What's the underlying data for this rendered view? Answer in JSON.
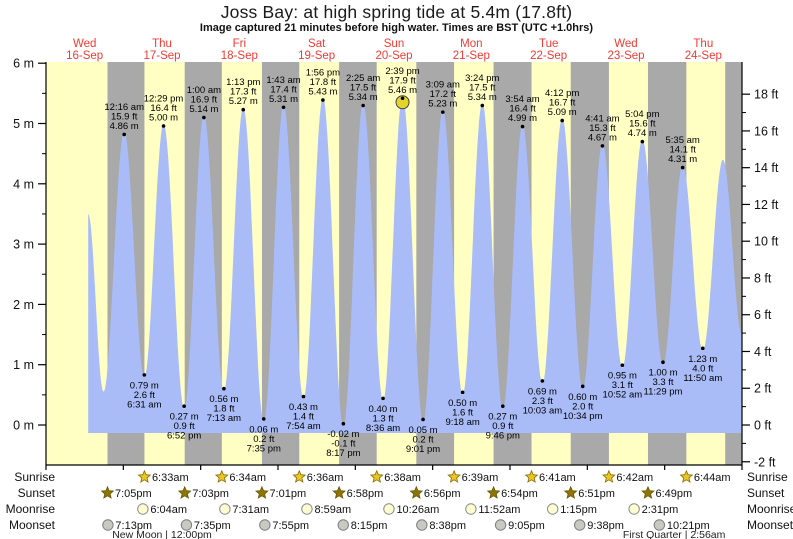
{
  "title": "Joss Bay: at high  spring tide at 5.4m (17.8ft)",
  "subtitle": "Image captured 21 minutes before high water. Times are BST (UTC +1.0hrs)",
  "row_labels": {
    "sunrise": "Sunrise",
    "sunset": "Sunset",
    "moonrise": "Moonrise",
    "moonset": "Moonset"
  },
  "colors": {
    "day_band": "#ffffc4",
    "night_band": "#a9a9a9",
    "tide_fill": "#a9bcf7",
    "date_label": "#f13b33",
    "marker_fill": "#e3d42c",
    "sunrise_star": "#e9c624",
    "sunset_star": "#8e7606",
    "moonrise_fill": "#ffffd2",
    "moonset_fill": "#c9c9c1"
  },
  "chart_data": {
    "type": "area",
    "title": "Joss Bay tide heights, 16-24 Sep",
    "ylabel_left": "m",
    "ylabel_right": "ft",
    "y_ticks_left": [
      "0 m",
      "1 m",
      "2 m",
      "3 m",
      "4 m",
      "5 m",
      "6 m"
    ],
    "y_ticks_right": [
      "-2 ft",
      "0 ft",
      "2 ft",
      "4 ft",
      "6 ft",
      "8 ft",
      "10 ft",
      "12 ft",
      "14 ft",
      "16 ft",
      "18 ft"
    ],
    "ylim_m": [
      -0.65,
      6
    ],
    "days": [
      {
        "dow": "Wed",
        "date": "16-Sep"
      },
      {
        "dow": "Thu",
        "date": "17-Sep"
      },
      {
        "dow": "Fri",
        "date": "18-Sep"
      },
      {
        "dow": "Sat",
        "date": "19-Sep"
      },
      {
        "dow": "Sun",
        "date": "20-Sep"
      },
      {
        "dow": "Mon",
        "date": "21-Sep"
      },
      {
        "dow": "Tue",
        "date": "22-Sep"
      },
      {
        "dow": "Wed",
        "date": "23-Sep"
      },
      {
        "dow": "Thu",
        "date": "24-Sep"
      }
    ],
    "tides": [
      {
        "day": 0,
        "time": "1:05 pm",
        "height_m": 3.5,
        "kind": "edge"
      },
      {
        "day": 0,
        "time": "5:50 pm",
        "height_m": 0.55,
        "kind": "low",
        "unlabeled": true
      },
      {
        "day": 1,
        "time": "12:16 am",
        "height_m": 4.86,
        "ft_label": "15.9 ft",
        "m_label": "4.86 m",
        "kind": "high"
      },
      {
        "day": 1,
        "time": "6:31 am",
        "height_m": 0.79,
        "ft_label": "2.6 ft",
        "m_label": "0.79 m",
        "kind": "low"
      },
      {
        "day": 1,
        "time": "12:29 pm",
        "height_m": 5.0,
        "ft_label": "16.4 ft",
        "m_label": "5.00 m",
        "kind": "high"
      },
      {
        "day": 1,
        "time": "6:52 pm",
        "height_m": 0.27,
        "ft_label": "0.9 ft",
        "m_label": "0.27 m",
        "kind": "low"
      },
      {
        "day": 2,
        "time": "1:00 am",
        "height_m": 5.14,
        "ft_label": "16.9 ft",
        "m_label": "5.14 m",
        "kind": "high"
      },
      {
        "day": 2,
        "time": "7:13 am",
        "height_m": 0.56,
        "ft_label": "1.8 ft",
        "m_label": "0.56 m",
        "kind": "low"
      },
      {
        "day": 2,
        "time": "1:13 pm",
        "height_m": 5.27,
        "ft_label": "17.3 ft",
        "m_label": "5.27 m",
        "kind": "high"
      },
      {
        "day": 2,
        "time": "7:35 pm",
        "height_m": 0.06,
        "ft_label": "0.2 ft",
        "m_label": "0.06 m",
        "kind": "low"
      },
      {
        "day": 3,
        "time": "1:43 am",
        "height_m": 5.31,
        "ft_label": "17.4 ft",
        "m_label": "5.31 m",
        "kind": "high"
      },
      {
        "day": 3,
        "time": "7:54 am",
        "height_m": 0.43,
        "ft_label": "1.4 ft",
        "m_label": "0.43 m",
        "kind": "low"
      },
      {
        "day": 3,
        "time": "1:56 pm",
        "height_m": 5.43,
        "ft_label": "17.8 ft",
        "m_label": "5.43 m",
        "kind": "high"
      },
      {
        "day": 3,
        "time": "8:17 pm",
        "height_m": -0.02,
        "ft_label": "-0.1 ft",
        "m_label": "-0.02 m",
        "kind": "low"
      },
      {
        "day": 4,
        "time": "2:25 am",
        "height_m": 5.34,
        "ft_label": "17.5 ft",
        "m_label": "5.34 m",
        "kind": "high"
      },
      {
        "day": 4,
        "time": "8:36 am",
        "height_m": 0.4,
        "ft_label": "1.3 ft",
        "m_label": "0.40 m",
        "kind": "low"
      },
      {
        "day": 4,
        "time": "2:39 pm",
        "height_m": 5.46,
        "ft_label": "17.9 ft",
        "m_label": "5.46 m",
        "kind": "high",
        "marker": true
      },
      {
        "day": 4,
        "time": "9:01 pm",
        "height_m": 0.05,
        "ft_label": "0.2 ft",
        "m_label": "0.05 m",
        "kind": "low"
      },
      {
        "day": 5,
        "time": "3:09 am",
        "height_m": 5.23,
        "ft_label": "17.2 ft",
        "m_label": "5.23 m",
        "kind": "high"
      },
      {
        "day": 5,
        "time": "9:18 am",
        "height_m": 0.5,
        "ft_label": "1.6 ft",
        "m_label": "0.50 m",
        "kind": "low"
      },
      {
        "day": 5,
        "time": "3:24 pm",
        "height_m": 5.34,
        "ft_label": "17.5 ft",
        "m_label": "5.34 m",
        "kind": "high"
      },
      {
        "day": 5,
        "time": "9:46 pm",
        "height_m": 0.27,
        "ft_label": "0.9 ft",
        "m_label": "0.27 m",
        "kind": "low"
      },
      {
        "day": 6,
        "time": "3:54 am",
        "height_m": 4.99,
        "ft_label": "16.4 ft",
        "m_label": "4.99 m",
        "kind": "high"
      },
      {
        "day": 6,
        "time": "10:03 am",
        "height_m": 0.69,
        "ft_label": "2.3 ft",
        "m_label": "0.69 m",
        "kind": "low"
      },
      {
        "day": 6,
        "time": "4:12 pm",
        "height_m": 5.09,
        "ft_label": "16.7 ft",
        "m_label": "5.09 m",
        "kind": "high"
      },
      {
        "day": 6,
        "time": "10:34 pm",
        "height_m": 0.6,
        "ft_label": "2.0 ft",
        "m_label": "0.60 m",
        "kind": "low"
      },
      {
        "day": 7,
        "time": "4:41 am",
        "height_m": 4.67,
        "ft_label": "15.3 ft",
        "m_label": "4.67 m",
        "kind": "high"
      },
      {
        "day": 7,
        "time": "10:52 am",
        "height_m": 0.95,
        "ft_label": "3.1 ft",
        "m_label": "0.95 m",
        "kind": "low"
      },
      {
        "day": 7,
        "time": "5:04 pm",
        "height_m": 4.74,
        "ft_label": "15.6 ft",
        "m_label": "4.74 m",
        "kind": "high"
      },
      {
        "day": 7,
        "time": "11:29 pm",
        "height_m": 1.0,
        "ft_label": "3.3 ft",
        "m_label": "1.00 m",
        "kind": "low"
      },
      {
        "day": 8,
        "time": "5:35 am",
        "height_m": 4.31,
        "ft_label": "14.1 ft",
        "m_label": "4.31 m",
        "kind": "high"
      },
      {
        "day": 8,
        "time": "11:50 am",
        "height_m": 1.23,
        "ft_label": "4.0 ft",
        "m_label": "1.23 m",
        "kind": "low"
      },
      {
        "day": 8,
        "time": "6:05 pm",
        "height_m": 4.4,
        "kind": "high",
        "unlabeled": true
      },
      {
        "day": 8,
        "time": "11:59 pm",
        "height_m": 1.5,
        "kind": "edge"
      }
    ],
    "sun_moon": {
      "sunrise": [
        {
          "day": 1,
          "time": "6:33am"
        },
        {
          "day": 2,
          "time": "6:34am"
        },
        {
          "day": 3,
          "time": "6:36am"
        },
        {
          "day": 4,
          "time": "6:38am"
        },
        {
          "day": 5,
          "time": "6:39am"
        },
        {
          "day": 6,
          "time": "6:41am"
        },
        {
          "day": 7,
          "time": "6:42am"
        },
        {
          "day": 8,
          "time": "6:44am"
        }
      ],
      "sunset": [
        {
          "day": 0,
          "time": "7:05pm"
        },
        {
          "day": 1,
          "time": "7:03pm"
        },
        {
          "day": 2,
          "time": "7:01pm"
        },
        {
          "day": 3,
          "time": "6:58pm"
        },
        {
          "day": 4,
          "time": "6:56pm"
        },
        {
          "day": 5,
          "time": "6:54pm"
        },
        {
          "day": 6,
          "time": "6:51pm"
        },
        {
          "day": 7,
          "time": "6:49pm"
        }
      ],
      "moonrise": [
        {
          "day": 1,
          "time": "6:04am"
        },
        {
          "day": 2,
          "time": "7:31am"
        },
        {
          "day": 3,
          "time": "8:59am"
        },
        {
          "day": 4,
          "time": "10:26am"
        },
        {
          "day": 5,
          "time": "11:52am"
        },
        {
          "day": 6,
          "time": "1:15pm"
        },
        {
          "day": 7,
          "time": "2:31pm"
        }
      ],
      "moonset": [
        {
          "day": 0,
          "time": "7:13pm"
        },
        {
          "day": 1,
          "time": "7:35pm"
        },
        {
          "day": 2,
          "time": "7:55pm"
        },
        {
          "day": 3,
          "time": "8:15pm"
        },
        {
          "day": 4,
          "time": "8:38pm"
        },
        {
          "day": 5,
          "time": "9:05pm"
        },
        {
          "day": 6,
          "time": "9:38pm"
        },
        {
          "day": 7,
          "time": "10:21pm"
        }
      ]
    },
    "moon_phases": [
      {
        "name": "New Moon",
        "time": "12:00pm",
        "day": 1
      },
      {
        "name": "First Quarter",
        "time": "2:56am",
        "day": 8
      }
    ]
  }
}
